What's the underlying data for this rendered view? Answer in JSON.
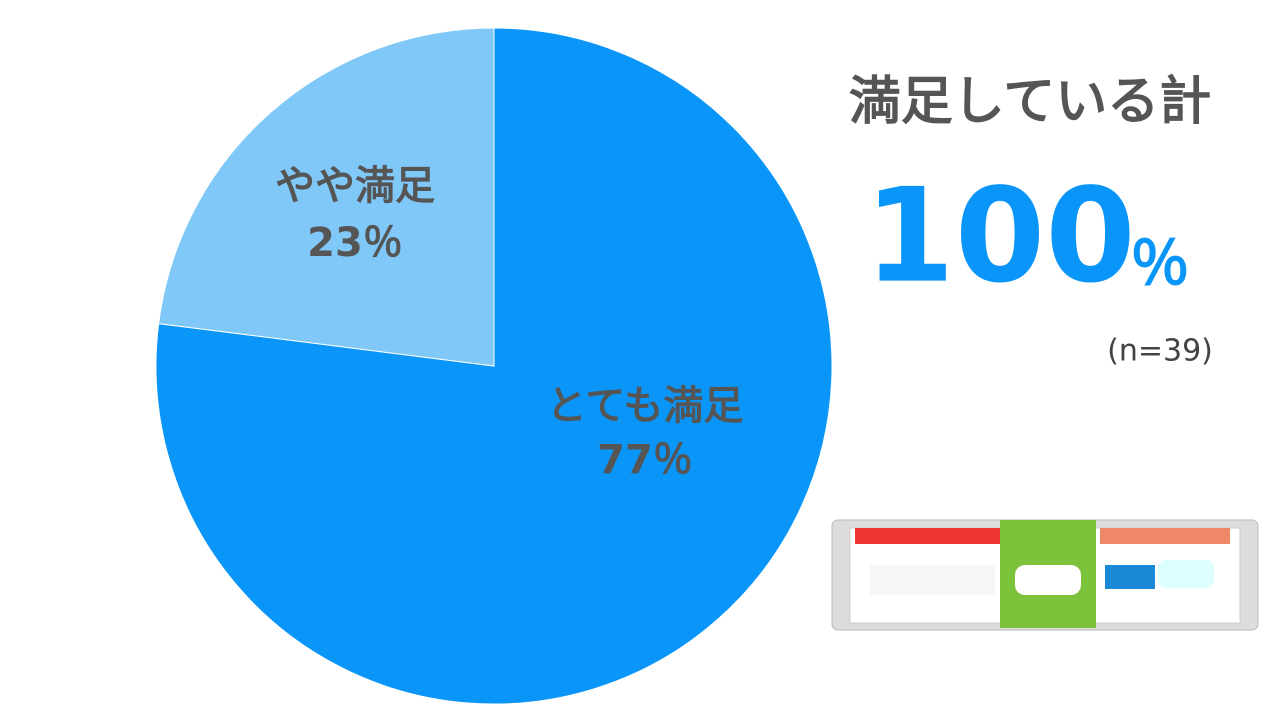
{
  "chart_data": {
    "type": "pie",
    "categories": [
      "とても満足",
      "やや満足"
    ],
    "values": [
      77,
      23
    ],
    "value_labels": [
      "77％",
      "23％"
    ],
    "colors": [
      "#0a96f8",
      "#80c8f7"
    ],
    "annotations": {
      "heading": "満足している計",
      "total": "100",
      "total_unit": "％",
      "sample": "(n=39)"
    }
  }
}
